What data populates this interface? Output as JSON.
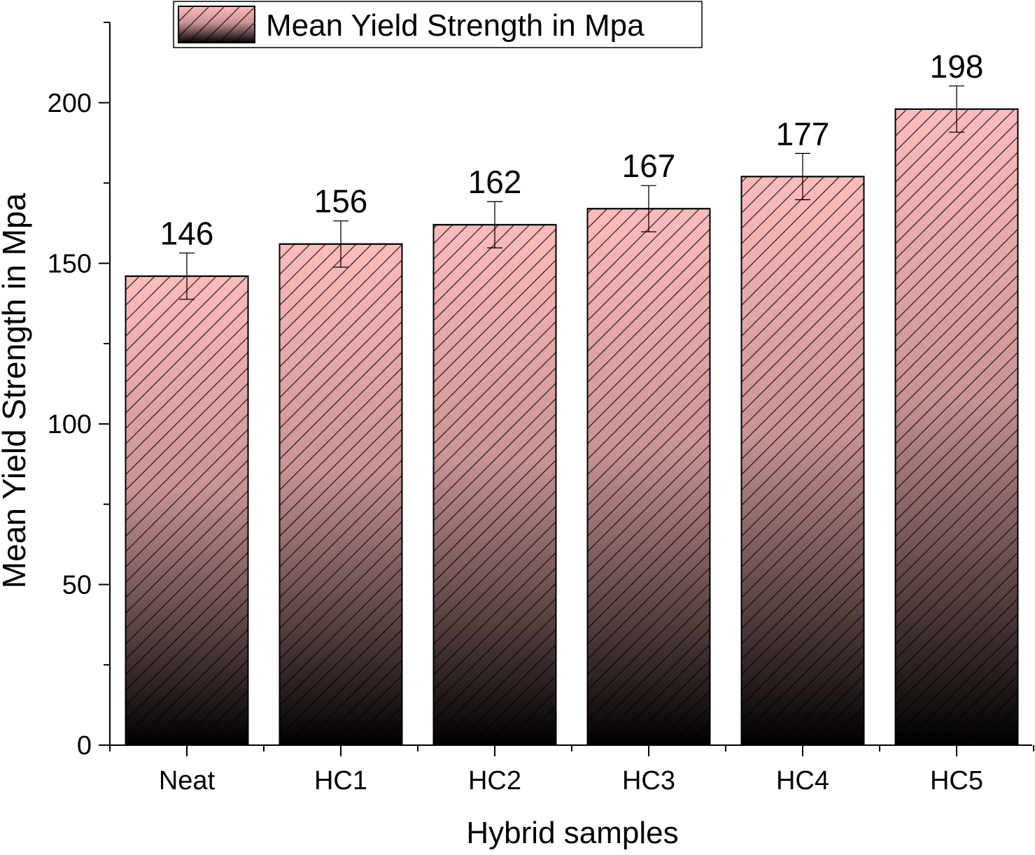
{
  "chart_data": {
    "type": "bar",
    "title": "",
    "xlabel": "Hybrid samples",
    "ylabel": "Mean Yield Strength in Mpa",
    "categories": [
      "Neat",
      "HC1",
      "HC2",
      "HC3",
      "HC4",
      "HC5"
    ],
    "series": [
      {
        "name": "Mean Yield Strength in Mpa",
        "values": [
          146,
          156,
          162,
          167,
          177,
          198
        ],
        "errors": [
          7.2,
          7.2,
          7.2,
          7.2,
          7.2,
          7.2
        ]
      }
    ],
    "data_labels": [
      "146",
      "156",
      "162",
      "167",
      "177",
      "198"
    ],
    "ylim": [
      0,
      225
    ],
    "yticks": [
      0,
      50,
      100,
      150,
      200
    ],
    "ytick_labels": [
      "0",
      "50",
      "100",
      "150",
      "200"
    ],
    "y_minor_step": 25,
    "grid": false,
    "legend": {
      "position": "top-center",
      "label": "Mean Yield Strength in Mpa"
    },
    "colors": {
      "bar_top": "#ffbcbc",
      "bar_bottom": "#000000",
      "hatch": "#000000",
      "edge": "#000000"
    }
  }
}
